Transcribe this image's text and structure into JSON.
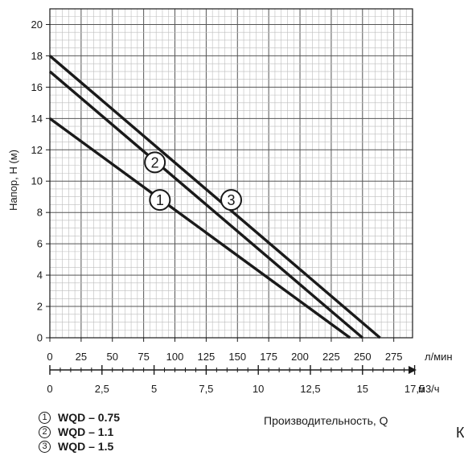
{
  "chart_data": {
    "type": "line",
    "ylabel": "Напор, Н (м)",
    "xlabel": "Производительность, Q",
    "x_unit_primary": "л/мин",
    "x_unit_secondary": "м3/ч",
    "xlim": [
      0,
      290
    ],
    "ylim": [
      0,
      21
    ],
    "y_ticks": [
      "0",
      "2",
      "4",
      "6",
      "8",
      "10",
      "12",
      "14",
      "16",
      "18",
      "20"
    ],
    "x_ticks_lmin": [
      "0",
      "25",
      "50",
      "75",
      "100",
      "125",
      "150",
      "175",
      "200",
      "225",
      "250",
      "275"
    ],
    "x_ticks_m3h": [
      "0",
      "2,5",
      "5",
      "7,5",
      "10",
      "12,5",
      "15",
      "17,5"
    ],
    "grid": true,
    "series": [
      {
        "name": "WQD – 0.75",
        "marker": "1",
        "x": [
          0,
          240
        ],
        "y": [
          14,
          0
        ],
        "label_at": [
          88,
          8.8
        ]
      },
      {
        "name": "WQD – 1.1",
        "marker": "2",
        "x": [
          0,
          250
        ],
        "y": [
          17,
          0
        ],
        "label_at": [
          84,
          11.2
        ]
      },
      {
        "name": "WQD – 1.5",
        "marker": "3",
        "x": [
          0,
          264
        ],
        "y": [
          18,
          0
        ],
        "label_at": [
          145,
          8.8
        ]
      }
    ]
  },
  "legend": [
    {
      "marker": "1",
      "label": "WQD – 0.75"
    },
    {
      "marker": "2",
      "label": "WQD – 1.1"
    },
    {
      "marker": "3",
      "label": "WQD – 1.5"
    }
  ],
  "stray_text": "К",
  "colors": {
    "line": "#1a1a1a",
    "grid_minor": "#bdbdbd",
    "grid_major": "#555555",
    "background": "#ffffff"
  }
}
